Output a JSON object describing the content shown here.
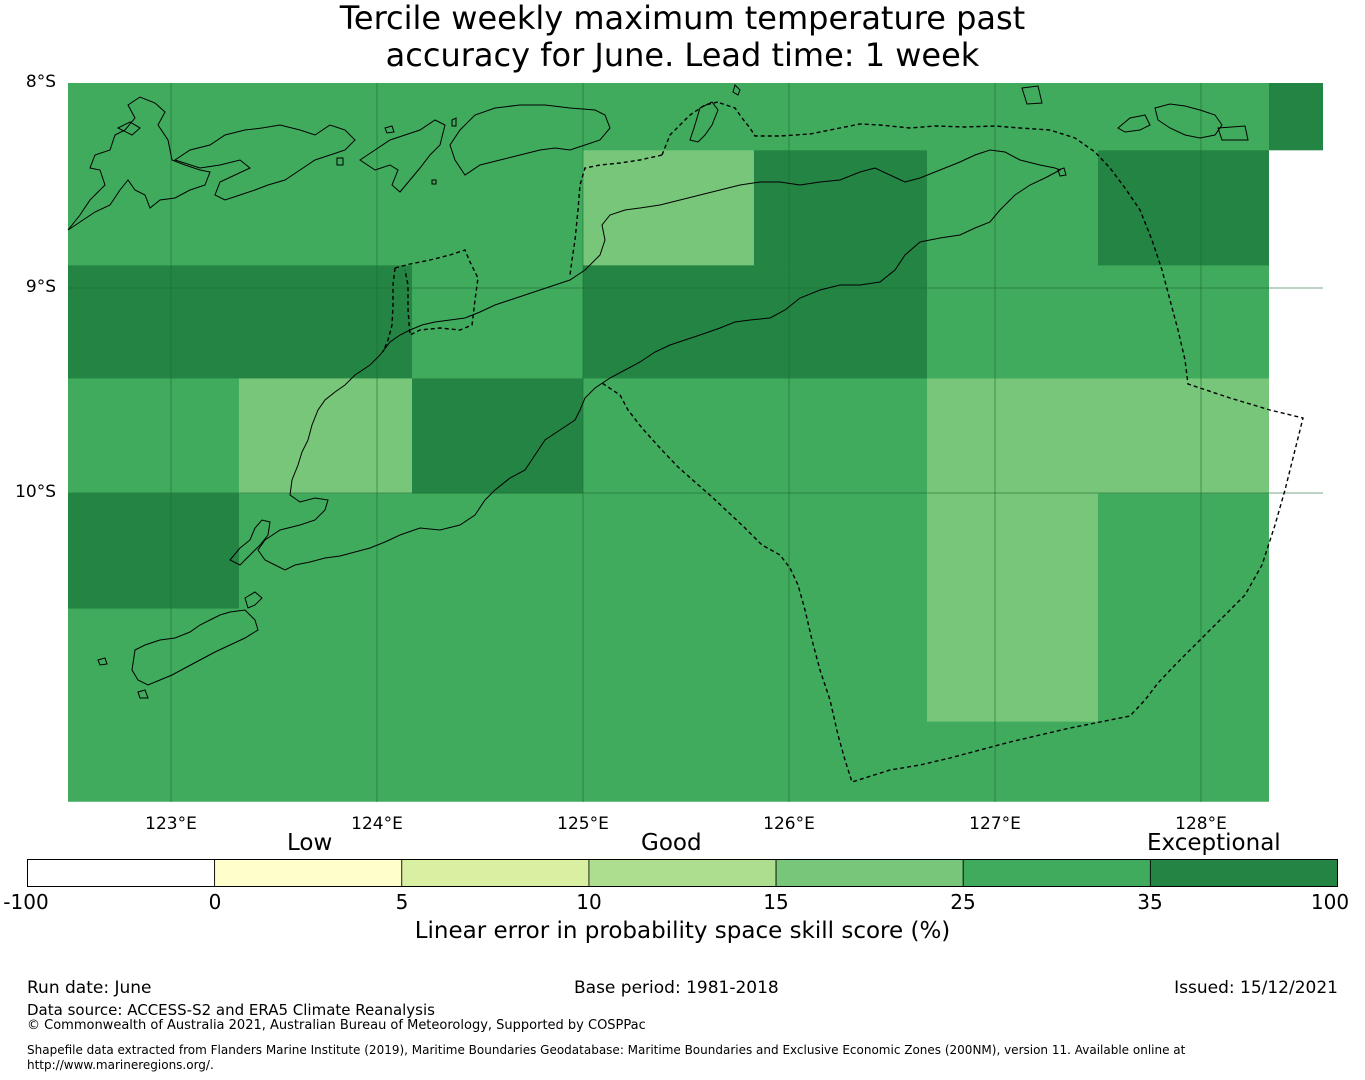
{
  "title": {
    "line1": "Tercile weekly maximum temperature past",
    "line2": "accuracy for June. Lead time: 1 week"
  },
  "map": {
    "lat_labels": [
      "8°S",
      "9°S",
      "10°S"
    ],
    "lon_labels": [
      "123°E",
      "124°E",
      "125°E",
      "126°E",
      "127°E",
      "128°E"
    ],
    "extent": {
      "lon_min": 122.5,
      "lon_max": 128.6,
      "lat_top": -8.0,
      "lat_bottom": -11.5
    },
    "colors": {
      "good_15_25": "#78c679",
      "good_25_35": "#41ab5d",
      "exceptional_35_100": "#238443",
      "gridline": "#1f6b34",
      "coastline": "#000000"
    },
    "skill_category_cells": [
      {
        "lon": [
          122.5,
          128.33
        ],
        "lat": [
          -8.0,
          -11.5
        ],
        "category": "25-35"
      },
      {
        "lon": [
          128.33,
          128.6
        ],
        "lat": [
          -8.0,
          -8.33
        ],
        "category": "35-100"
      },
      {
        "lon": [
          125.0,
          125.83
        ],
        "lat": [
          -8.33,
          -8.89
        ],
        "category": "15-25"
      },
      {
        "lon": [
          125.83,
          126.67
        ],
        "lat": [
          -8.33,
          -8.89
        ],
        "category": "35-100"
      },
      {
        "lon": [
          127.5,
          128.33
        ],
        "lat": [
          -8.33,
          -8.89
        ],
        "category": "35-100"
      },
      {
        "lon": [
          122.5,
          124.17
        ],
        "lat": [
          -8.89,
          -9.44
        ],
        "category": "35-100"
      },
      {
        "lon": [
          125.0,
          126.67
        ],
        "lat": [
          -8.89,
          -9.44
        ],
        "category": "35-100"
      },
      {
        "lon": [
          123.33,
          124.17
        ],
        "lat": [
          -9.44,
          -10.0
        ],
        "category": "15-25"
      },
      {
        "lon": [
          124.17,
          125.0
        ],
        "lat": [
          -9.44,
          -10.0
        ],
        "category": "35-100"
      },
      {
        "lon": [
          126.67,
          128.33
        ],
        "lat": [
          -9.44,
          -10.0
        ],
        "category": "15-25"
      },
      {
        "lon": [
          122.5,
          123.33
        ],
        "lat": [
          -10.0,
          -10.56
        ],
        "category": "35-100"
      },
      {
        "lon": [
          126.67,
          127.5
        ],
        "lat": [
          -10.0,
          -11.11
        ],
        "category": "15-25"
      }
    ]
  },
  "colorbar": {
    "category_labels": [
      "Low",
      "Good",
      "Exceptional"
    ],
    "ticks": [
      "-100",
      "0",
      "5",
      "10",
      "15",
      "25",
      "35",
      "100"
    ],
    "colors": [
      "#ffffff",
      "#ffffcc",
      "#d9f0a3",
      "#addd8e",
      "#78c679",
      "#41ab5d",
      "#238443"
    ],
    "title": "Linear error in probability space skill score (%)"
  },
  "footer": {
    "run_date": "Run date: June",
    "base_period": "Base period: 1981-2018",
    "issued": "Issued: 15/12/2021",
    "data_source": "Data source: ACCESS-S2 and ERA5 Climate Reanalysis",
    "copyright": "© Commonwealth of Australia 2021, Australian Bureau of Meteorology, Supported by COSPPac",
    "shapefile_line1": "Shapefile data extracted from Flanders Marine Institute (2019), Maritime Boundaries Geodatabase: Maritime Boundaries and Exclusive Economic Zones (200NM), version 11. Available online at",
    "shapefile_line2": "http://www.marineregions.org/."
  }
}
